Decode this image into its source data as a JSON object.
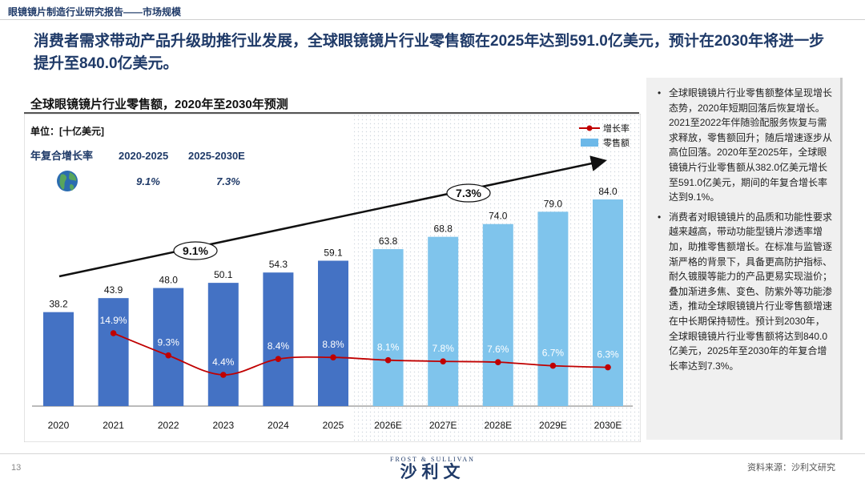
{
  "header": {
    "label": "眼镜镜片制造行业研究报告——市场规模"
  },
  "headline": "消费者需求带动产品升级助推行业发展，全球眼镜镜片行业零售额在2025年达到591.0亿美元，预计在2030年将进一步提升至840.0亿美元。",
  "chart_data": {
    "type": "bar",
    "title": "全球眼镜镜片行业零售额，2020年至2030年预测",
    "unit_label": "单位：[十亿美元]",
    "categories": [
      "2020",
      "2021",
      "2022",
      "2023",
      "2024",
      "2025",
      "2026E",
      "2027E",
      "2028E",
      "2029E",
      "2030E"
    ],
    "series": [
      {
        "name": "零售额",
        "type": "bar",
        "values": [
          38.2,
          43.9,
          48.0,
          50.1,
          54.3,
          59.1,
          63.8,
          68.8,
          74.0,
          79.0,
          84.0
        ],
        "value_labels": [
          "38.2",
          "43.9",
          "48.0",
          "50.1",
          "54.3",
          "59.1",
          "63.8",
          "68.8",
          "74.0",
          "79.0",
          "84.0"
        ]
      },
      {
        "name": "增长率",
        "type": "line",
        "values": [
          null,
          14.9,
          9.3,
          4.4,
          8.4,
          8.8,
          8.1,
          7.8,
          7.6,
          6.7,
          6.3
        ],
        "value_labels": [
          "",
          "14.9%",
          "9.3%",
          "4.4%",
          "8.4%",
          "8.8%",
          "8.1%",
          "7.8%",
          "7.6%",
          "6.7%",
          "6.3%"
        ]
      }
    ],
    "cagr": {
      "label": "年复合增长率",
      "periods": [
        "2020-2025",
        "2025-2030E"
      ],
      "values": [
        "9.1%",
        "7.3%"
      ]
    },
    "trend_labels": [
      "9.1%",
      "7.3%"
    ],
    "historical_color": "#4472c4",
    "forecast_color": "#7fc4ec",
    "growth_line_color": "#c00000",
    "legend_position": "top-right"
  },
  "side_panel": {
    "bullets": [
      "全球眼镜镜片行业零售额整体呈现增长态势，2020年短期回落后恢复增长。2021至2022年伴随验配服务恢复与需求释放，零售额回升；随后增速逐步从高位回落。2020年至2025年，全球眼镜镜片行业零售额从382.0亿美元增长至591.0亿美元，期间的年复合增长率达到9.1%。",
      "消费者对眼镜镜片的品质和功能性要求越来越高，带动功能型镜片渗透率增加，助推零售额增长。在标准与监管逐渐严格的背景下，具备更高防护指标、耐久镀膜等能力的产品更易实现溢价；叠加渐进多焦、变色、防紫外等功能渗透，推动全球眼镜镜片行业零售额增速在中长期保持韧性。预计到2030年，全球眼镜镜片行业零售额将达到840.0亿美元，2025年至2030年的年复合增长率达到7.3%。"
    ]
  },
  "footer": {
    "page_number": "13",
    "logo_top": "FROST & SULLIVAN",
    "logo_main": "沙利文",
    "source": "资料来源：沙利文研究"
  }
}
